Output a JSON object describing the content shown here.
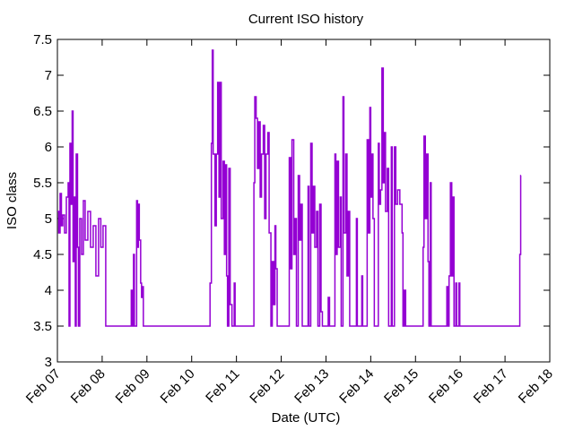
{
  "chart_data": {
    "type": "step",
    "title": "Current ISO history",
    "x_label": "Date (UTC)",
    "y_label": "ISO class",
    "series": [
      {
        "color": "#9400d3",
        "x": [
          0.0,
          0.03,
          0.06,
          0.09,
          0.12,
          0.16,
          0.2,
          0.24,
          0.26,
          0.28,
          0.3,
          0.33,
          0.35,
          0.38,
          0.4,
          0.42,
          0.45,
          0.47,
          0.5,
          0.54,
          0.58,
          0.62,
          0.68,
          0.74,
          0.8,
          0.86,
          0.92,
          0.97,
          1.02,
          1.08,
          1.65,
          1.67,
          1.7,
          1.72,
          1.77,
          1.79,
          1.81,
          1.83,
          1.86,
          1.88,
          1.9,
          1.92,
          3.41,
          3.44,
          3.46,
          3.48,
          3.52,
          3.55,
          3.58,
          3.61,
          3.64,
          3.66,
          3.7,
          3.73,
          3.76,
          3.78,
          3.8,
          3.83,
          3.86,
          3.9,
          3.95,
          3.97,
          4.39,
          4.41,
          4.44,
          4.47,
          4.5,
          4.53,
          4.56,
          4.6,
          4.63,
          4.66,
          4.7,
          4.73,
          4.77,
          4.8,
          4.83,
          4.86,
          4.88,
          4.91,
          5.18,
          5.21,
          5.24,
          5.28,
          5.31,
          5.34,
          5.38,
          5.41,
          5.44,
          5.47,
          5.6,
          5.62,
          5.66,
          5.69,
          5.72,
          5.75,
          5.79,
          5.82,
          5.86,
          5.89,
          5.92,
          6.05,
          6.08,
          6.2,
          6.22,
          6.25,
          6.28,
          6.32,
          6.34,
          6.38,
          6.4,
          6.44,
          6.47,
          6.5,
          6.53,
          6.68,
          6.7,
          6.8,
          6.82,
          6.92,
          6.95,
          6.98,
          7.0,
          7.03,
          7.05,
          7.08,
          7.17,
          7.19,
          7.22,
          7.25,
          7.28,
          7.3,
          7.33,
          7.37,
          7.4,
          7.46,
          7.48,
          7.53,
          7.56,
          7.6,
          7.65,
          7.7,
          7.72,
          7.75,
          7.78,
          8.17,
          8.19,
          8.22,
          8.25,
          8.28,
          8.3,
          8.33,
          8.35,
          8.7,
          8.72,
          8.75,
          8.78,
          8.81,
          8.83,
          8.86,
          8.9,
          8.92,
          8.97,
          8.99,
          10.33,
          10.35,
          10.36
        ],
        "values": [
          5.1,
          4.8,
          5.35,
          4.9,
          5.05,
          4.8,
          5.3,
          5.5,
          3.5,
          6.05,
          5.2,
          6.5,
          4.4,
          5.3,
          3.5,
          5.9,
          4.6,
          3.5,
          5.0,
          4.5,
          5.25,
          4.7,
          5.1,
          4.6,
          4.9,
          4.2,
          5.0,
          4.6,
          4.9,
          3.5,
          4.0,
          3.5,
          4.5,
          3.5,
          5.25,
          4.6,
          5.2,
          4.7,
          4.1,
          3.9,
          4.05,
          3.5,
          4.1,
          6.05,
          7.35,
          5.9,
          4.9,
          5.9,
          6.9,
          5.3,
          6.9,
          5.0,
          5.8,
          4.5,
          5.75,
          4.2,
          3.5,
          5.7,
          3.8,
          3.5,
          4.1,
          3.5,
          5.5,
          6.7,
          6.4,
          5.7,
          6.35,
          5.3,
          5.9,
          6.3,
          5.0,
          5.9,
          6.2,
          4.8,
          3.5,
          4.4,
          3.8,
          4.9,
          4.3,
          3.5,
          5.85,
          4.3,
          6.1,
          4.5,
          5.0,
          3.5,
          5.6,
          4.7,
          5.2,
          3.5,
          5.45,
          3.5,
          6.05,
          4.8,
          5.45,
          4.6,
          5.1,
          3.5,
          5.2,
          3.7,
          3.5,
          3.9,
          3.5,
          5.9,
          4.5,
          5.8,
          4.6,
          5.3,
          3.5,
          6.7,
          4.8,
          5.9,
          4.2,
          5.1,
          3.5,
          5.0,
          3.5,
          4.2,
          3.5,
          6.1,
          4.8,
          6.55,
          5.3,
          5.9,
          5.0,
          3.5,
          6.05,
          5.2,
          5.4,
          7.1,
          5.5,
          6.2,
          5.1,
          5.7,
          3.5,
          6.0,
          3.5,
          6.0,
          5.2,
          5.4,
          5.2,
          4.8,
          3.5,
          4.0,
          3.5,
          4.6,
          6.15,
          5.0,
          5.9,
          4.4,
          3.5,
          5.5,
          3.5,
          4.05,
          3.5,
          4.2,
          5.5,
          4.2,
          5.3,
          3.5,
          4.1,
          3.5,
          4.1,
          3.5,
          4.5,
          5.6,
          5.6
        ]
      }
    ],
    "xlim": [
      0,
      11
    ],
    "xticks": [
      {
        "value": 0,
        "label": "Feb 07"
      },
      {
        "value": 1,
        "label": "Feb 08"
      },
      {
        "value": 2,
        "label": "Feb 09"
      },
      {
        "value": 3,
        "label": "Feb 10"
      },
      {
        "value": 4,
        "label": "Feb 11"
      },
      {
        "value": 5,
        "label": "Feb 12"
      },
      {
        "value": 6,
        "label": "Feb 13"
      },
      {
        "value": 7,
        "label": "Feb 14"
      },
      {
        "value": 8,
        "label": "Feb 15"
      },
      {
        "value": 9,
        "label": "Feb 16"
      },
      {
        "value": 10,
        "label": "Feb 17"
      },
      {
        "value": 11,
        "label": "Feb 18"
      }
    ],
    "ylim": [
      3,
      7.5
    ],
    "yticks": [
      3,
      3.5,
      4,
      4.5,
      5,
      5.5,
      6,
      6.5,
      7,
      7.5
    ]
  }
}
